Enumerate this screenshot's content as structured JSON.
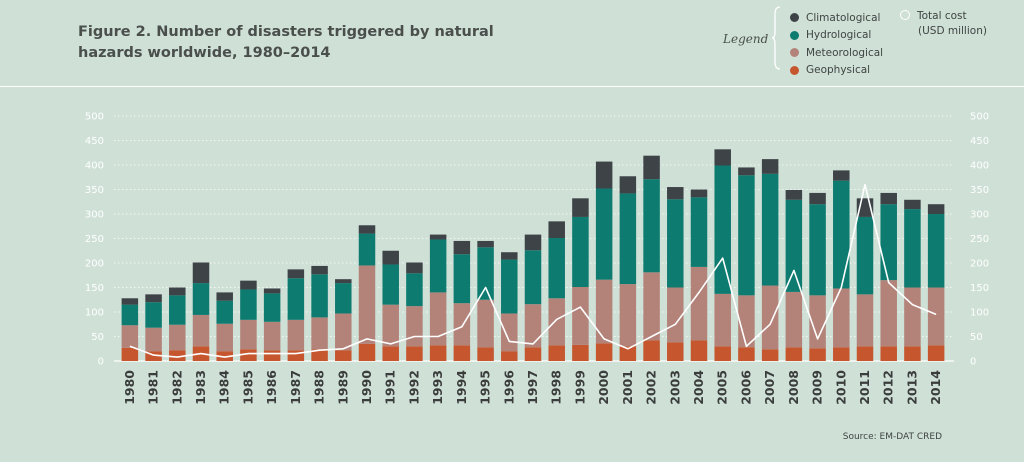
{
  "figure": {
    "title": "Figure 2. Number of disasters triggered by natural hazards worldwide, 1980–2014",
    "legend_label": "Legend",
    "cost_label_line1": "Total cost",
    "cost_label_line2": "(USD million)",
    "source": "Source: EM-DAT CRED"
  },
  "colors": {
    "background": "#cfe0d7",
    "climatological": "#3d4347",
    "hydrological": "#0d7b70",
    "meteorological": "#b3837a",
    "geophysical": "#c5562e",
    "total_cost": "#ffffff",
    "gridline": "#ffffff",
    "axis_text": "#ffffff",
    "year_text": "#3a3d3c"
  },
  "chart_data": {
    "type": "bar",
    "stacked": true,
    "title": "Figure 2. Number of disasters triggered by natural hazards worldwide, 1980–2014",
    "categories": [
      "1980",
      "1981",
      "1982",
      "1983",
      "1984",
      "1985",
      "1986",
      "1987",
      "1988",
      "1989",
      "1990",
      "1991",
      "1992",
      "1993",
      "1994",
      "1995",
      "1996",
      "1997",
      "1998",
      "1999",
      "2000",
      "2001",
      "2002",
      "2003",
      "2004",
      "2005",
      "2006",
      "2007",
      "2008",
      "2009",
      "2010",
      "2011",
      "2012",
      "2013",
      "2014"
    ],
    "ylim": [
      0,
      500
    ],
    "y_ticks": [
      0,
      50,
      100,
      150,
      200,
      250,
      300,
      350,
      400,
      450,
      500
    ],
    "y2lim": [
      0,
      500
    ],
    "grid": true,
    "legend_position": "top-right",
    "series": [
      {
        "name": "Geophysical",
        "color_key": "geophysical",
        "values": [
          27,
          20,
          22,
          30,
          20,
          24,
          22,
          22,
          24,
          22,
          35,
          30,
          30,
          32,
          32,
          28,
          20,
          28,
          32,
          33,
          36,
          30,
          42,
          38,
          42,
          30,
          28,
          24,
          28,
          26,
          28,
          30,
          30,
          30,
          32
        ]
      },
      {
        "name": "Meteorological",
        "color_key": "meteorological",
        "values": [
          46,
          48,
          52,
          64,
          56,
          60,
          58,
          62,
          65,
          75,
          160,
          85,
          82,
          108,
          86,
          97,
          77,
          88,
          96,
          118,
          130,
          127,
          139,
          112,
          150,
          107,
          106,
          130,
          113,
          108,
          120,
          106,
          135,
          120,
          118
        ]
      },
      {
        "name": "Hydrological",
        "color_key": "hydrological",
        "values": [
          42,
          52,
          60,
          65,
          47,
          62,
          58,
          85,
          88,
          62,
          65,
          82,
          67,
          108,
          100,
          107,
          110,
          110,
          123,
          143,
          186,
          185,
          190,
          180,
          142,
          262,
          245,
          228,
          188,
          186,
          220,
          158,
          155,
          160,
          150
        ]
      },
      {
        "name": "Climatological",
        "color_key": "climatological",
        "values": [
          13,
          16,
          16,
          42,
          17,
          18,
          10,
          18,
          17,
          8,
          17,
          28,
          22,
          10,
          27,
          13,
          15,
          32,
          34,
          38,
          55,
          35,
          48,
          25,
          16,
          33,
          16,
          30,
          20,
          23,
          21,
          38,
          23,
          19,
          20
        ]
      }
    ],
    "cost_series": {
      "name": "Total cost",
      "unit": "USD million",
      "values": [
        30,
        12,
        8,
        15,
        8,
        15,
        15,
        15,
        22,
        25,
        45,
        35,
        50,
        50,
        70,
        150,
        40,
        35,
        85,
        110,
        45,
        25,
        50,
        75,
        140,
        210,
        30,
        75,
        185,
        45,
        150,
        360,
        160,
        115,
        95
      ]
    }
  }
}
